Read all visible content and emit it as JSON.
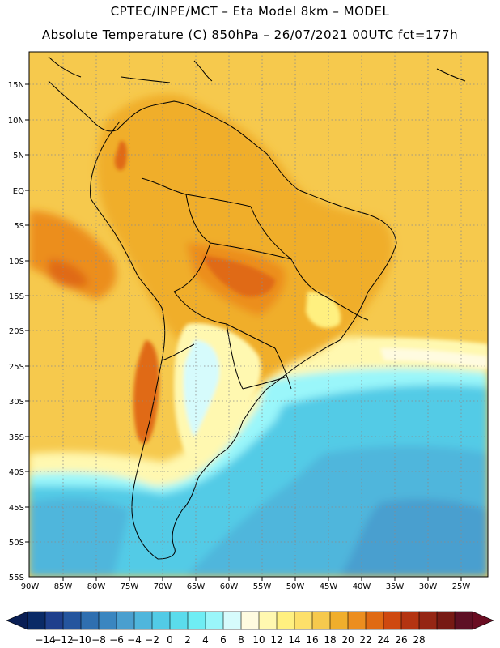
{
  "title_line1": "CPTEC/INPE/MCT –  Eta Model 8km – MODEL",
  "title_line2": "Absolute Temperature (C) 850hPa – 26/07/2021 00UTC fct=177h",
  "map": {
    "lat_labels": [
      "15N",
      "10N",
      "5N",
      "EQ",
      "5S",
      "10S",
      "15S",
      "20S",
      "25S",
      "30S",
      "35S",
      "40S",
      "45S",
      "50S",
      "55S"
    ],
    "lon_labels": [
      "90W",
      "85W",
      "80W",
      "75W",
      "70W",
      "65W",
      "60W",
      "55W",
      "50W",
      "45W",
      "40W",
      "35W",
      "30W",
      "25W"
    ]
  },
  "colorbar": {
    "labels": [
      "-14",
      "-12",
      "-10",
      "-8",
      "-6",
      "-4",
      "-2",
      "0",
      "2",
      "4",
      "6",
      "8",
      "10",
      "12",
      "14",
      "16",
      "18",
      "20",
      "22",
      "24",
      "26",
      "28"
    ],
    "colors": [
      "#0a2a66",
      "#1e3f8c",
      "#24559e",
      "#2f6fb0",
      "#3a86c0",
      "#4a9fcf",
      "#4fb6dc",
      "#52cbe6",
      "#5bdcec",
      "#6fedf4",
      "#9af6fa",
      "#d6fbfc",
      "#fffbe0",
      "#fff8b0",
      "#fff080",
      "#fde06a",
      "#f6c94d",
      "#f0ae2c",
      "#ec8e1f",
      "#e06a13",
      "#cf4910",
      "#b43411",
      "#952614",
      "#771a14",
      "#5e1024"
    ],
    "low_arrow_color": "#0a1f55",
    "high_arrow_color": "#6a0d22"
  },
  "colors": {
    "land_warm": "#f0ae2c",
    "sea_warm": "#f6c94d",
    "hot": "#ec8e1f",
    "very_hot": "#e06a13",
    "cold_sea": "#52cbe6",
    "coldest_sea": "#4fb6dc",
    "frame": "#000000"
  }
}
